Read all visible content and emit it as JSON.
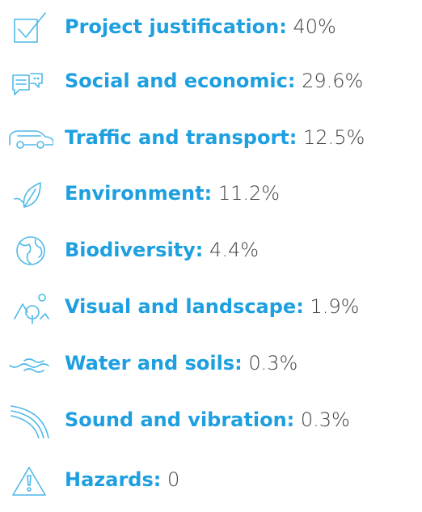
{
  "items": [
    {
      "label": "Project justification:",
      "value": "40%"
    },
    {
      "label": "Social and economic:",
      "value": "29.6%"
    },
    {
      "label": "Traffic and transport:",
      "value": "12.5%"
    },
    {
      "label": "Environment:",
      "value": "11.2%"
    },
    {
      "label": "Biodiversity:",
      "value": "4.4%"
    },
    {
      "label": "Visual and landscape:",
      "value": "1.9%"
    },
    {
      "label": "Water and soils:",
      "value": "0.3%"
    },
    {
      "label": "Sound and vibration:",
      "value": "0.3%"
    },
    {
      "label": "Hazards:",
      "value": "0"
    }
  ]
}
